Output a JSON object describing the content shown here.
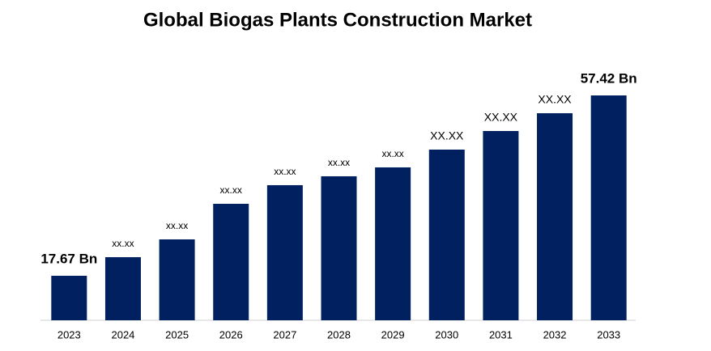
{
  "chart_data": {
    "type": "bar",
    "title": "Global Biogas Plants Construction Market",
    "categories": [
      "2023",
      "2024",
      "2025",
      "2026",
      "2027",
      "2028",
      "2029",
      "2030",
      "2031",
      "2032",
      "2033"
    ],
    "values": [
      17.67,
      21.77,
      25.69,
      33.53,
      37.64,
      39.6,
      41.56,
      45.48,
      49.58,
      53.5,
      57.42
    ],
    "value_labels": [
      "17.67 Bn",
      "xx.xx",
      "xx.xx",
      "xx.xx",
      "xx.xx",
      "xx.xx",
      "xx.xx",
      "XX.XX",
      "XX.XX",
      "XX.XX",
      "57.42 Bn"
    ],
    "color": "#002060",
    "ylim": [
      7.86,
      57.42
    ]
  }
}
